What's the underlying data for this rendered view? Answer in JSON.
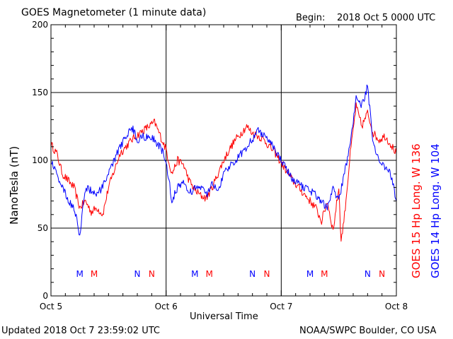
{
  "header": {
    "title": "GOES Magnetometer (1 minute data)",
    "begin_label": "Begin:",
    "begin_value": "2018 Oct 5 0000 UTC"
  },
  "footer": {
    "updated": "Updated 2018 Oct  7 23:59:02 UTC",
    "credit": "NOAA/SWPC Boulder, CO USA"
  },
  "legend": {
    "goes15": "GOES 15 Hp  Long. W 136",
    "goes14": "GOES 14 Hp  Long. W 104"
  },
  "chart_data": {
    "type": "line",
    "title": "GOES Magnetometer (1 minute data)",
    "xlabel": "Universal Time",
    "ylabel": "NanoTesla (nT)",
    "ylim": [
      0,
      200
    ],
    "yticks": [
      0,
      50,
      100,
      150,
      200
    ],
    "xlim": [
      0,
      3
    ],
    "x_unit": "days since 2018 Oct 5 0000 UTC",
    "xtick_labels": [
      "Oct 5",
      "Oct 6",
      "Oct 7",
      "Oct 8"
    ],
    "grid": true,
    "colors": {
      "goes15": "#ff0000",
      "goes14": "#0000ff"
    },
    "series": [
      {
        "name": "GOES 15 Hp  Long. W 136",
        "color": "#ff0000",
        "x": [
          0.0,
          0.05,
          0.1,
          0.15,
          0.2,
          0.25,
          0.3,
          0.35,
          0.4,
          0.45,
          0.5,
          0.6,
          0.7,
          0.8,
          0.9,
          1.0,
          1.05,
          1.1,
          1.15,
          1.2,
          1.25,
          1.3,
          1.35,
          1.4,
          1.45,
          1.5,
          1.55,
          1.6,
          1.7,
          1.75,
          1.8,
          1.85,
          1.9,
          1.95,
          2.0,
          2.1,
          2.2,
          2.3,
          2.35,
          2.4,
          2.45,
          2.5,
          2.52,
          2.55,
          2.6,
          2.65,
          2.7,
          2.75,
          2.8,
          2.85,
          2.9,
          2.95,
          3.0
        ],
        "values": [
          112,
          105,
          90,
          85,
          80,
          65,
          70,
          62,
          65,
          60,
          80,
          105,
          115,
          122,
          128,
          108,
          90,
          100,
          97,
          85,
          78,
          74,
          72,
          80,
          90,
          100,
          108,
          115,
          125,
          120,
          118,
          115,
          110,
          105,
          98,
          85,
          75,
          65,
          55,
          70,
          48,
          80,
          40,
          60,
          105,
          140,
          125,
          135,
          120,
          115,
          118,
          112,
          105
        ]
      },
      {
        "name": "GOES 14 Hp  Long. W 104",
        "color": "#0000ff",
        "x": [
          0.0,
          0.05,
          0.1,
          0.15,
          0.2,
          0.25,
          0.3,
          0.35,
          0.4,
          0.45,
          0.5,
          0.6,
          0.7,
          0.75,
          0.8,
          0.9,
          0.95,
          1.0,
          1.05,
          1.1,
          1.15,
          1.2,
          1.25,
          1.3,
          1.35,
          1.4,
          1.45,
          1.5,
          1.55,
          1.6,
          1.7,
          1.8,
          1.9,
          2.0,
          2.1,
          2.2,
          2.3,
          2.35,
          2.4,
          2.45,
          2.5,
          2.6,
          2.65,
          2.7,
          2.75,
          2.8,
          2.85,
          2.9,
          2.95,
          3.0
        ],
        "values": [
          100,
          90,
          80,
          70,
          65,
          45,
          80,
          78,
          75,
          80,
          90,
          110,
          125,
          115,
          118,
          115,
          110,
          100,
          70,
          80,
          85,
          75,
          80,
          80,
          75,
          82,
          78,
          90,
          95,
          100,
          110,
          122,
          115,
          100,
          85,
          80,
          75,
          70,
          65,
          80,
          70,
          112,
          145,
          140,
          155,
          110,
          100,
          95,
          90,
          70
        ]
      }
    ],
    "annotations": {
      "markers": [
        {
          "label": "M",
          "color": "#0000ff",
          "x": 0.25
        },
        {
          "label": "M",
          "color": "#ff0000",
          "x": 0.375
        },
        {
          "label": "N",
          "color": "#0000ff",
          "x": 0.75
        },
        {
          "label": "N",
          "color": "#ff0000",
          "x": 0.875
        },
        {
          "label": "M",
          "color": "#0000ff",
          "x": 1.25
        },
        {
          "label": "M",
          "color": "#ff0000",
          "x": 1.375
        },
        {
          "label": "N",
          "color": "#0000ff",
          "x": 1.75
        },
        {
          "label": "N",
          "color": "#ff0000",
          "x": 1.875
        },
        {
          "label": "M",
          "color": "#0000ff",
          "x": 2.25
        },
        {
          "label": "M",
          "color": "#ff0000",
          "x": 2.375
        },
        {
          "label": "N",
          "color": "#0000ff",
          "x": 2.75
        },
        {
          "label": "N",
          "color": "#ff0000",
          "x": 2.875
        }
      ]
    }
  }
}
